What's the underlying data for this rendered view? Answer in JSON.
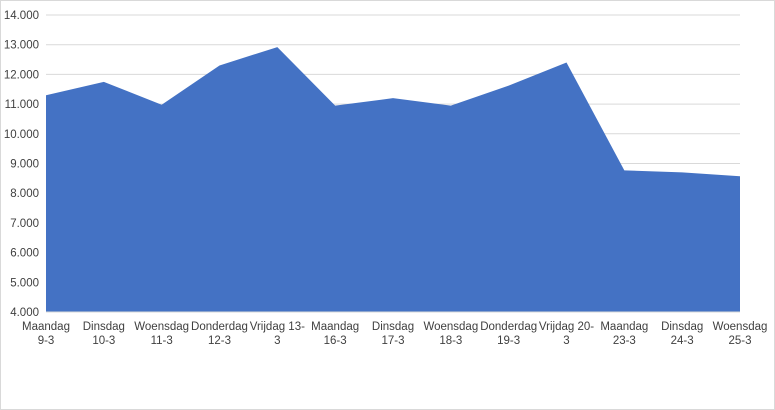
{
  "chart_data": {
    "type": "area",
    "title": "",
    "xlabel": "",
    "ylabel": "",
    "categories": [
      [
        "Maandag",
        "9-3"
      ],
      [
        "Dinsdag",
        "10-3"
      ],
      [
        "Woensdag",
        "11-3"
      ],
      [
        "Donderdag",
        "12-3"
      ],
      [
        "Vrijdag 13-",
        "3"
      ],
      [
        "Maandag",
        "16-3"
      ],
      [
        "Dinsdag",
        "17-3"
      ],
      [
        "Woensdag",
        "18-3"
      ],
      [
        "Donderdag",
        "19-3"
      ],
      [
        "Vrijdag 20-",
        "3"
      ],
      [
        "Maandag",
        "23-3"
      ],
      [
        "Dinsdag",
        "24-3"
      ],
      [
        "Woensdag",
        "25-3"
      ]
    ],
    "series": [
      {
        "values": [
          11300,
          11750,
          10980,
          12300,
          12920,
          10950,
          11200,
          10950,
          11620,
          12400,
          8770,
          8700,
          8570
        ],
        "color": "#4472c4"
      }
    ],
    "ylim": [
      4000,
      14000
    ],
    "yticks": [
      4000,
      5000,
      6000,
      7000,
      8000,
      9000,
      10000,
      11000,
      12000,
      13000,
      14000
    ],
    "ytick_labels": [
      "4.000",
      "5.000",
      "6.000",
      "7.000",
      "8.000",
      "9.000",
      "10.000",
      "11.000",
      "12.000",
      "13.000",
      "14.000"
    ],
    "grid": true,
    "legend": "none"
  }
}
